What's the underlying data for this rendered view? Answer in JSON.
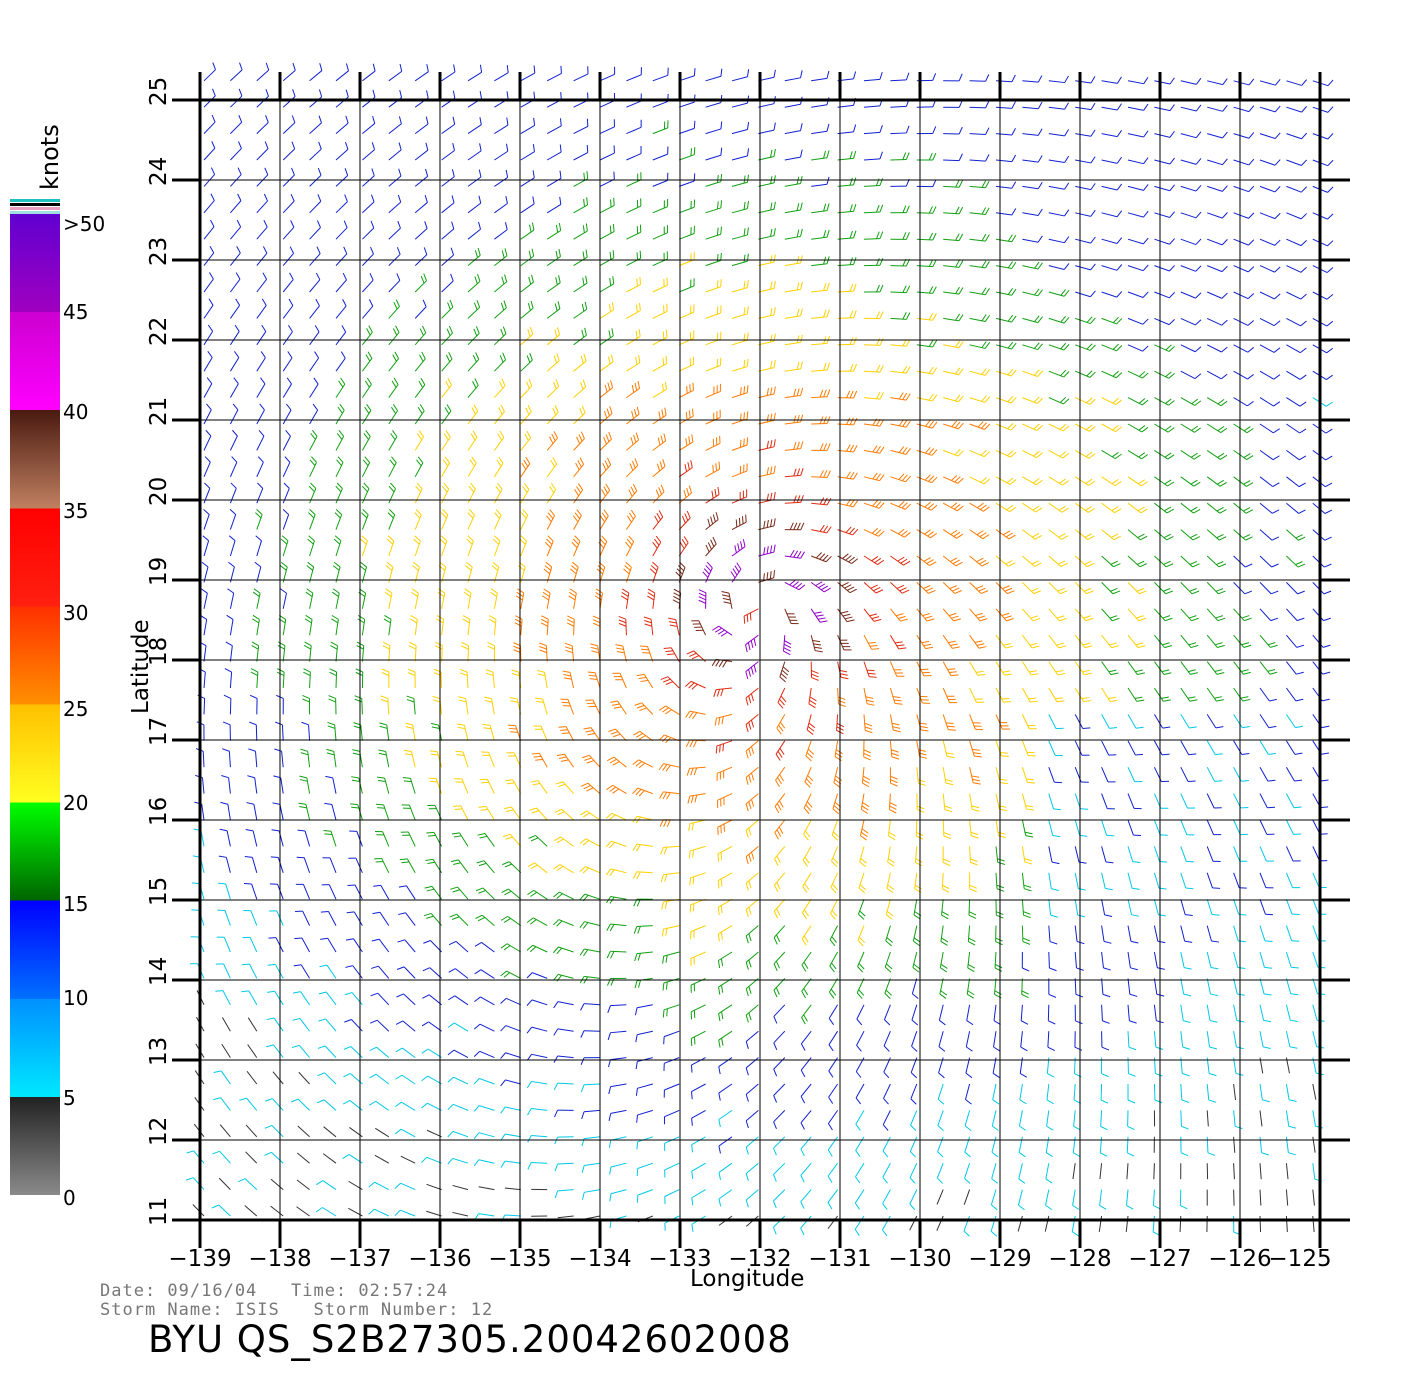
{
  "colorbar": {
    "title": "knots",
    "labels": [
      ">50",
      "45",
      "40",
      "35",
      "30",
      "25",
      "20",
      "15",
      "10",
      "5",
      "0"
    ],
    "segments": [
      {
        "from": 0,
        "to": 5,
        "colors": [
          "#8a8a8a",
          "#222222"
        ]
      },
      {
        "from": 5,
        "to": 10,
        "colors": [
          "#00e8ff",
          "#0090ff"
        ]
      },
      {
        "from": 10,
        "to": 15,
        "colors": [
          "#0070ff",
          "#0000ff"
        ]
      },
      {
        "from": 15,
        "to": 20,
        "colors": [
          "#006400",
          "#00ff00"
        ]
      },
      {
        "from": 20,
        "to": 25,
        "colors": [
          "#ffff20",
          "#ffc000"
        ]
      },
      {
        "from": 25,
        "to": 30,
        "colors": [
          "#ff9000",
          "#ff3000"
        ]
      },
      {
        "from": 30,
        "to": 35,
        "colors": [
          "#ff2010",
          "#ff0000"
        ]
      },
      {
        "from": 35,
        "to": 40,
        "colors": [
          "#c08060",
          "#4a1a10"
        ]
      },
      {
        "from": 40,
        "to": 45,
        "colors": [
          "#ff00ff",
          "#cc00d0"
        ]
      },
      {
        "from": 45,
        "to": 50,
        "colors": [
          "#a000c0",
          "#6000d0"
        ]
      }
    ]
  },
  "axes": {
    "xlabel": "Longitude",
    "ylabel": "Latitude",
    "xticks": [
      "−139",
      "−138",
      "−137",
      "−136",
      "−135",
      "−134",
      "−133",
      "−132",
      "−131",
      "−130",
      "−129",
      "−128",
      "−127",
      "−126",
      "−125"
    ],
    "yticks": [
      "11",
      "12",
      "13",
      "14",
      "15",
      "16",
      "17",
      "18",
      "19",
      "20",
      "21",
      "22",
      "23",
      "24",
      "25"
    ],
    "lon_range": [
      -139,
      -125
    ],
    "lat_range": [
      11,
      25
    ]
  },
  "storm": {
    "center_lon": -132.0,
    "center_lat": 18.8,
    "max_wind_knots": 45
  },
  "footer": {
    "date_line": "Date: 09/16/04   Time: 02:57:24",
    "storm_line": "Storm Name: ISIS   Storm Number: 12",
    "product_id": "BYU  QS_S2B27305.20042602008"
  }
}
